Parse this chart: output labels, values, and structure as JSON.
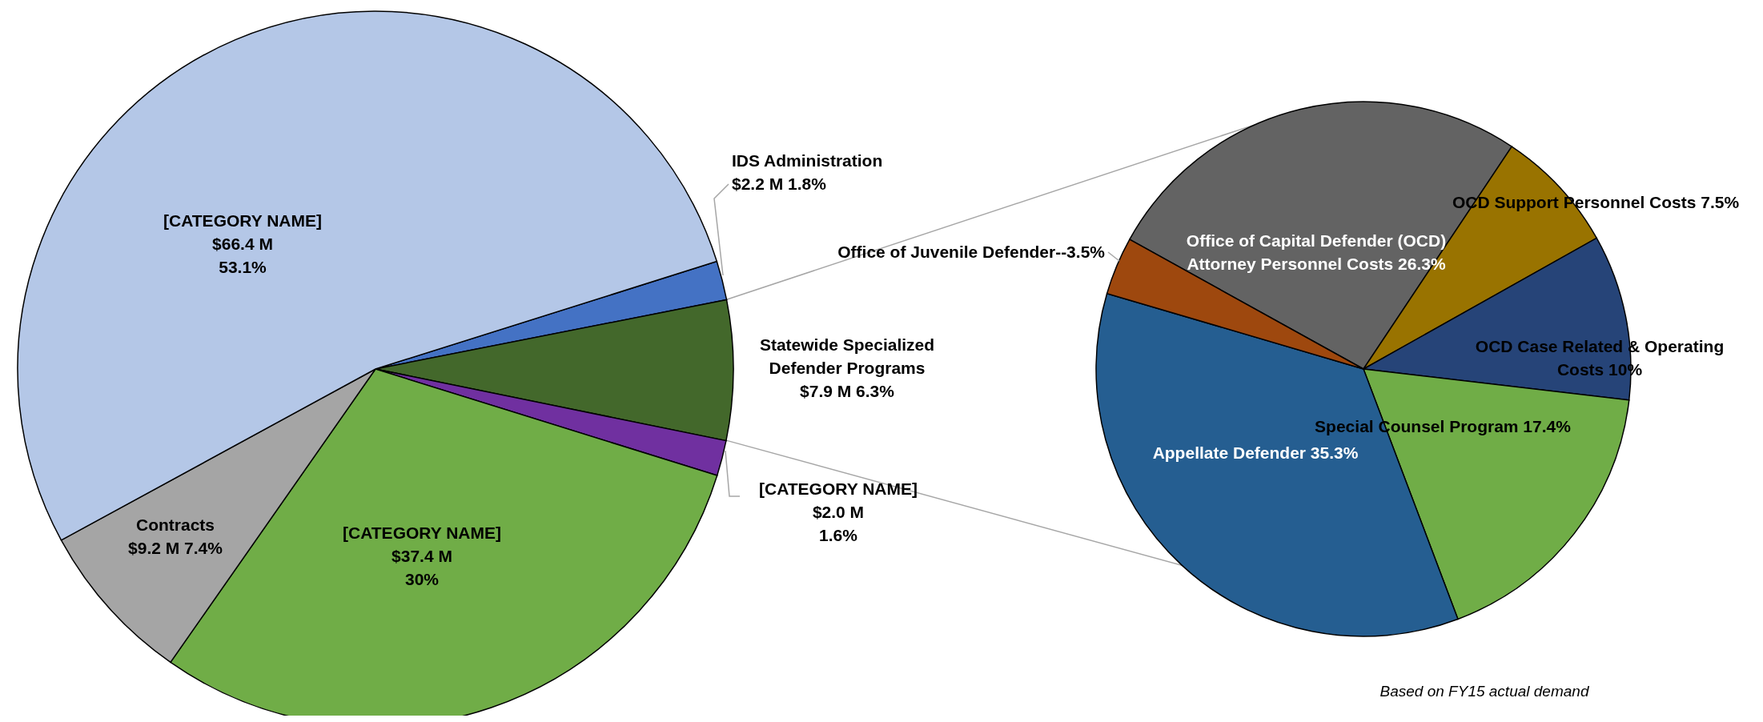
{
  "chart_data": [
    {
      "type": "pie",
      "categories": [
        "IDS Administration",
        "Statewide Specialized\nDefender Programs",
        "[CATEGORY NAME]",
        "[CATEGORY NAME]",
        "Contracts",
        "[CATEGORY NAME]"
      ],
      "values": [
        2.2,
        7.9,
        2.0,
        37.4,
        9.2,
        66.4
      ],
      "colors": [
        "#4472c4",
        "#43682b",
        "#7030a0",
        "#70ad47",
        "#a5a5a5",
        "#b4c7e7"
      ],
      "value_labels": [
        "$2.2 M  1.8%",
        "$7.9 M 6.3%",
        "$2.0 M\n1.6%",
        "$37.4 M\n30%",
        "$9.2 M 7.4%",
        "$66.4 M\n53.1%"
      ]
    },
    {
      "type": "pie",
      "categories": [
        "Office of Capital Defender (OCD)\nAttorney Personnel Costs",
        "OCD Support Personnel Costs",
        "OCD Case Related & Operating\nCosts",
        "Special Counsel Program",
        "Appellate Defender",
        "Office of Juvenile Defender--"
      ],
      "values": [
        26.3,
        7.5,
        10,
        17.4,
        35.3,
        3.5
      ],
      "colors": [
        "#636363",
        "#997300",
        "#264478",
        "#70ad47",
        "#255e91",
        "#9e480e"
      ],
      "value_labels": [
        "26.3%",
        "7.5%",
        "10%",
        "17.4%",
        "35.3%",
        "3.5%"
      ],
      "annotations": [
        "Based on FY15 actual demand"
      ]
    }
  ]
}
